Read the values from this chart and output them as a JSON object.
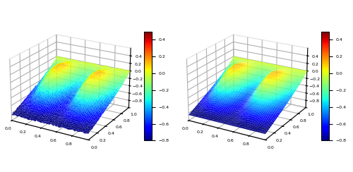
{
  "colormap": "jet",
  "xlim": [
    0,
    1
  ],
  "ylim": [
    0,
    1
  ],
  "zlim": [
    -1.0,
    0.6
  ],
  "clim": [
    -0.8,
    0.5
  ],
  "colorbar_ticks": [
    0.4,
    0.2,
    0.0,
    -0.2,
    -0.4,
    -0.6,
    -0.8
  ],
  "n_points": 60,
  "elev": 22,
  "azim": -60,
  "background_color": "#ffffff",
  "figsize": [
    5.0,
    2.44
  ],
  "dpi": 100
}
